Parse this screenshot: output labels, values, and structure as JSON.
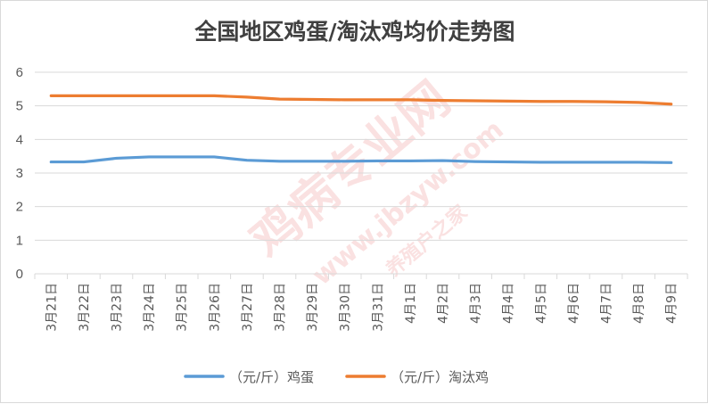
{
  "chart_data": {
    "type": "line",
    "title": "全国地区鸡蛋/淘汰鸡均价走势图",
    "xlabel": "",
    "ylabel": "",
    "categories": [
      "3月21日",
      "3月22日",
      "3月23日",
      "3月24日",
      "3月25日",
      "3月26日",
      "3月27日",
      "3月28日",
      "3月29日",
      "3月30日",
      "3月31日",
      "4月1日",
      "4月2日",
      "4月3日",
      "4月4日",
      "4月5日",
      "4月6日",
      "4月7日",
      "4月8日",
      "4月9日"
    ],
    "ylim": [
      0,
      6
    ],
    "yticks": [
      "0",
      "1",
      "2",
      "3",
      "4",
      "5",
      "6"
    ],
    "grid": true,
    "legend": "bottom",
    "series": [
      {
        "name": "（元/斤）鸡蛋",
        "color": "#5b9bd5",
        "values": [
          3.33,
          3.33,
          3.44,
          3.48,
          3.48,
          3.48,
          3.38,
          3.35,
          3.35,
          3.35,
          3.36,
          3.36,
          3.37,
          3.34,
          3.33,
          3.32,
          3.32,
          3.32,
          3.32,
          3.31
        ]
      },
      {
        "name": "（元/斤）淘汰鸡",
        "color": "#ed7d31",
        "values": [
          5.3,
          5.3,
          5.3,
          5.3,
          5.3,
          5.3,
          5.26,
          5.2,
          5.19,
          5.18,
          5.18,
          5.18,
          5.16,
          5.15,
          5.14,
          5.13,
          5.13,
          5.12,
          5.1,
          5.05
        ]
      }
    ]
  },
  "watermark": {
    "brand": "鸡病专业网",
    "url": "www.jbzyw.com",
    "slogan": "养殖户之家"
  }
}
